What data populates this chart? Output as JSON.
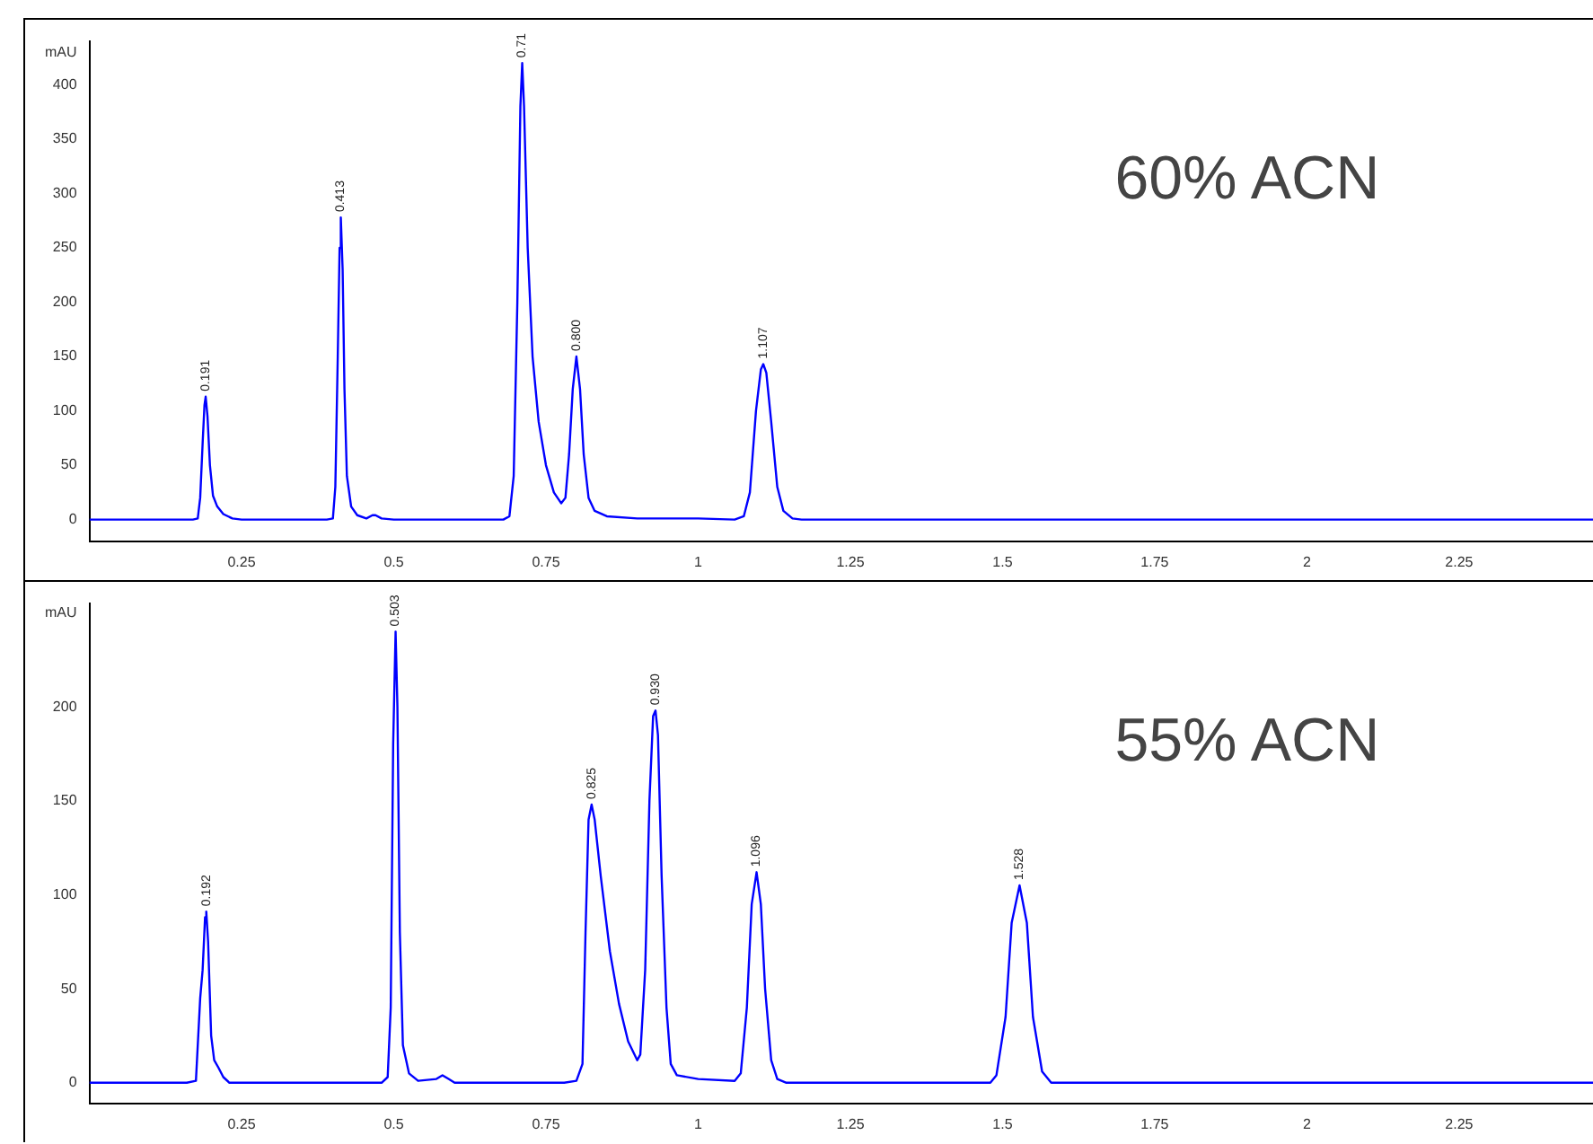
{
  "chart_data": [
    {
      "type": "line",
      "title": "60% ACN",
      "xlim": [
        0,
        2.47
      ],
      "xticks": [
        0.25,
        0.5,
        0.75,
        1,
        1.25,
        1.5,
        1.75,
        2,
        2.25
      ],
      "ylim": [
        -20,
        440
      ],
      "yticks": [
        0,
        50,
        100,
        150,
        200,
        250,
        300,
        350,
        400,
        {
          "value": 430,
          "label": "mAU"
        }
      ],
      "grid": false,
      "legend": false,
      "marker": "none",
      "series": [
        {
          "color": "#0000ff",
          "x": [
            0,
            0.17,
            0.178,
            0.182,
            0.186,
            0.189,
            0.191,
            0.194,
            0.198,
            0.203,
            0.21,
            0.22,
            0.235,
            0.25,
            0.39,
            0.4,
            0.404,
            0.408,
            0.411,
            0.413,
            0.416,
            0.419,
            0.423,
            0.43,
            0.44,
            0.455,
            0.465,
            0.47,
            0.48,
            0.5,
            0.68,
            0.69,
            0.697,
            0.703,
            0.708,
            0.711,
            0.714,
            0.72,
            0.728,
            0.738,
            0.75,
            0.763,
            0.775,
            0.782,
            0.788,
            0.794,
            0.8,
            0.806,
            0.812,
            0.82,
            0.83,
            0.85,
            0.9,
            1.0,
            1.06,
            1.075,
            1.085,
            1.095,
            1.103,
            1.107,
            1.112,
            1.12,
            1.13,
            1.14,
            1.155,
            1.17,
            2.47
          ],
          "values": [
            0,
            0,
            1,
            20,
            70,
            105,
            113,
            95,
            50,
            22,
            12,
            5,
            1,
            0,
            0,
            1,
            30,
            150,
            250,
            278,
            230,
            120,
            40,
            12,
            4,
            1,
            4,
            4,
            1,
            0,
            0,
            3,
            40,
            200,
            380,
            420,
            380,
            250,
            150,
            90,
            50,
            25,
            15,
            20,
            60,
            120,
            150,
            120,
            60,
            20,
            8,
            3,
            1,
            1,
            0,
            3,
            25,
            100,
            138,
            143,
            135,
            90,
            30,
            8,
            1,
            0,
            0
          ]
        }
      ],
      "annotations": [
        {
          "text": "0.191",
          "x": 0.191,
          "y": 113
        },
        {
          "text": "0.413",
          "x": 0.413,
          "y": 278
        },
        {
          "text": "0.71",
          "x": 0.711,
          "y": 420
        },
        {
          "text": "0.800",
          "x": 0.8,
          "y": 150
        },
        {
          "text": "1.107",
          "x": 1.107,
          "y": 143
        }
      ]
    },
    {
      "type": "line",
      "title": "55% ACN",
      "xlim": [
        0,
        2.47
      ],
      "xticks": [
        0.25,
        0.5,
        0.75,
        1,
        1.25,
        1.5,
        1.75,
        2,
        2.25
      ],
      "ylim": [
        -11,
        255
      ],
      "yticks": [
        0,
        50,
        100,
        150,
        200,
        {
          "value": 250,
          "label": "mAU"
        }
      ],
      "grid": false,
      "legend": false,
      "marker": "none",
      "series": [
        {
          "color": "#0000ff",
          "x": [
            0,
            0.16,
            0.175,
            0.182,
            0.186,
            0.19,
            0.192,
            0.195,
            0.2,
            0.205,
            0.212,
            0.22,
            0.23,
            0.48,
            0.49,
            0.495,
            0.499,
            0.503,
            0.506,
            0.51,
            0.515,
            0.525,
            0.54,
            0.57,
            0.58,
            0.59,
            0.6,
            0.78,
            0.8,
            0.81,
            0.815,
            0.82,
            0.825,
            0.83,
            0.84,
            0.855,
            0.87,
            0.885,
            0.9,
            0.905,
            0.913,
            0.92,
            0.926,
            0.93,
            0.934,
            0.94,
            0.948,
            0.955,
            0.965,
            1.0,
            1.06,
            1.07,
            1.08,
            1.088,
            1.096,
            1.103,
            1.11,
            1.12,
            1.13,
            1.145,
            1.48,
            1.49,
            1.505,
            1.515,
            1.528,
            1.54,
            1.55,
            1.565,
            1.58,
            2.47
          ],
          "values": [
            0,
            0,
            1,
            45,
            60,
            88,
            91,
            75,
            25,
            12,
            8,
            3,
            0,
            0,
            3,
            40,
            180,
            240,
            200,
            80,
            20,
            5,
            1,
            2,
            4,
            2,
            0,
            0,
            1,
            10,
            80,
            140,
            148,
            140,
            110,
            70,
            42,
            22,
            12,
            15,
            60,
            150,
            195,
            198,
            185,
            110,
            40,
            10,
            4,
            2,
            1,
            5,
            40,
            95,
            112,
            95,
            50,
            12,
            2,
            0,
            0,
            4,
            35,
            85,
            105,
            85,
            35,
            6,
            0,
            0
          ]
        }
      ],
      "annotations": [
        {
          "text": "0.192",
          "x": 0.192,
          "y": 91
        },
        {
          "text": "0.503",
          "x": 0.503,
          "y": 240
        },
        {
          "text": "0.825",
          "x": 0.825,
          "y": 148
        },
        {
          "text": "0.930",
          "x": 0.93,
          "y": 198
        },
        {
          "text": "1.096",
          "x": 1.096,
          "y": 112
        },
        {
          "text": "1.528",
          "x": 1.528,
          "y": 105
        }
      ]
    }
  ]
}
